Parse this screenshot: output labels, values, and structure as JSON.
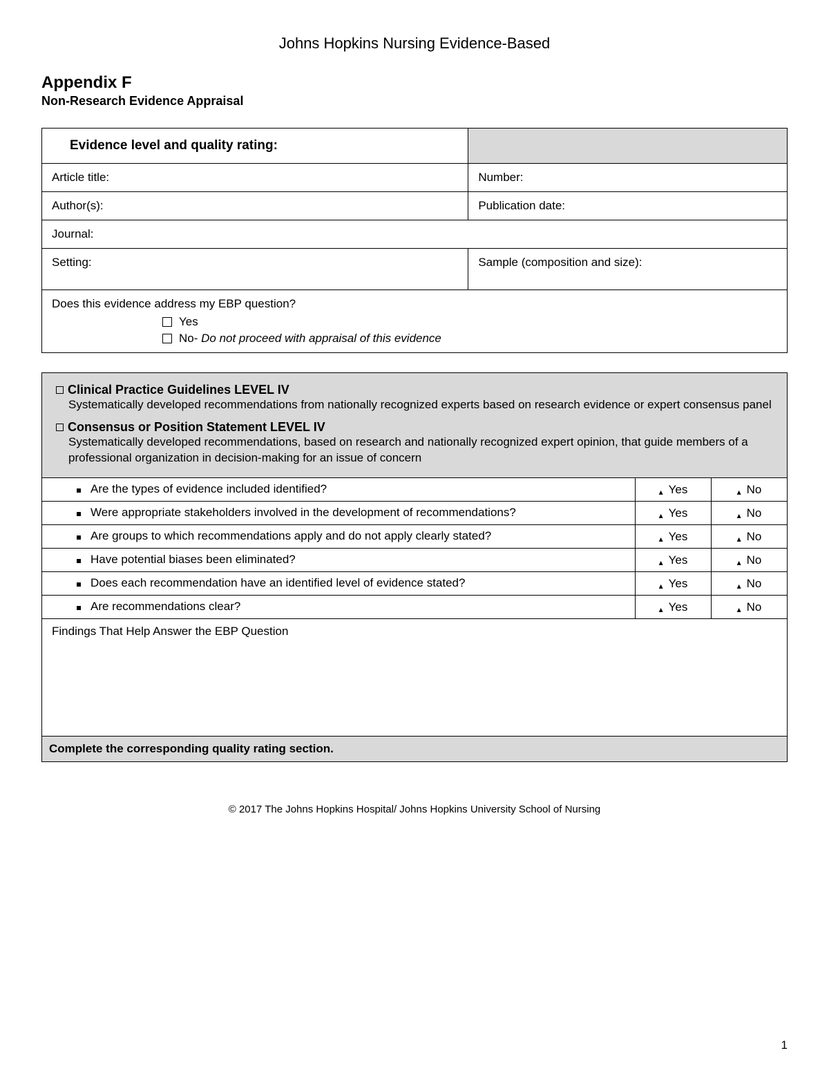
{
  "doc_header": "Johns Hopkins Nursing Evidence-Based",
  "appendix_title": "Appendix F",
  "appendix_sub": "Non-Research Evidence Appraisal",
  "form": {
    "evidence_level_label": "Evidence level and quality rating:",
    "article_title_label": "Article title:",
    "number_label": "Number:",
    "authors_label": "Author(s):",
    "pub_date_label": "Publication date:",
    "journal_label": "Journal:",
    "setting_label": "Setting:",
    "sample_label": "Sample (composition and size):",
    "ebp_question": "Does this evidence address my EBP question?",
    "yes_label": "Yes",
    "no_prefix": "No- ",
    "no_italic": "Do not proceed with appraisal of this evidence"
  },
  "levels": {
    "block1_title": "Clinical Practice Guidelines LEVEL IV",
    "block1_desc": "Systematically developed recommendations from nationally recognized experts based on research evidence or expert consensus panel",
    "block2_title": "Consensus or Position Statement LEVEL IV",
    "block2_desc": "Systematically developed recommendations, based on research and nationally recognized expert opinion, that guide members of a professional organization in decision-making for an issue of concern"
  },
  "questions": {
    "q1": "Are the types of evidence included identified?",
    "q2": "Were appropriate stakeholders involved in the development of recommendations?",
    "q3": "Are groups to which recommendations apply and do not apply clearly stated?",
    "q4": "Have potential biases been eliminated?",
    "q5": "Does each recommendation have an identified level of evidence stated?",
    "q6": "Are recommendations clear?"
  },
  "yn": {
    "yes": "Yes",
    "no": "No"
  },
  "findings_label": "Findings That Help Answer the EBP Question",
  "complete_label": "Complete the corresponding quality rating section.",
  "footer": "© 2017 The Johns Hopkins Hospital/ Johns Hopkins University School of Nursing",
  "page_number": "1"
}
